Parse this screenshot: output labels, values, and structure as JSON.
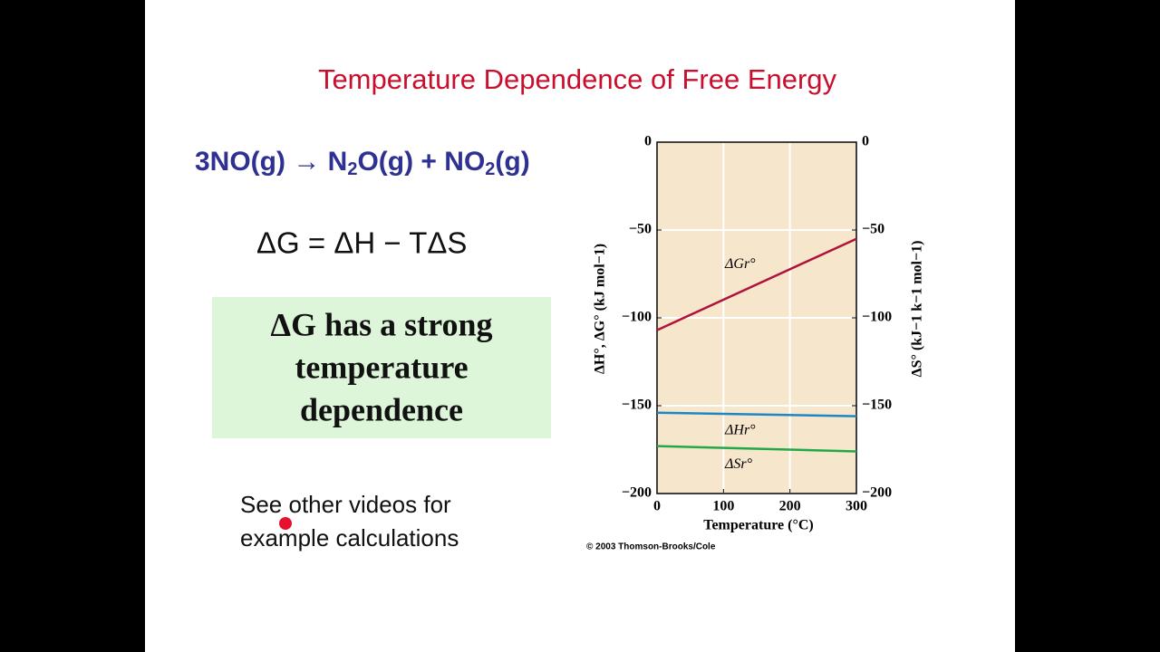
{
  "title": "Temperature Dependence of Free Energy",
  "reaction": [
    "3NO(g) → N",
    "2",
    "O(g) + NO",
    "2",
    "(g)"
  ],
  "equation": "ΔG = ΔH − TΔS",
  "callout": [
    "ΔG has a strong",
    "temperature",
    "dependence"
  ],
  "note": [
    "See other videos for",
    "example calculations"
  ],
  "chart_data": {
    "type": "line",
    "x": [
      0,
      300
    ],
    "series": [
      {
        "name": "ΔGr°",
        "color": "#b0123c",
        "values": [
          -107,
          -55
        ]
      },
      {
        "name": "ΔHr°",
        "color": "#1f86c4",
        "values": [
          -154,
          -156
        ]
      },
      {
        "name": "ΔSr°",
        "color": "#22a846",
        "values": [
          -173,
          -176
        ],
        "axis": "y2"
      }
    ],
    "xlim": [
      0,
      300
    ],
    "xticks": [
      0,
      100,
      200,
      300
    ],
    "ylim": [
      -200,
      0
    ],
    "yticks": [
      {
        "value": -200,
        "label": "−200"
      },
      {
        "value": -150,
        "label": "−150"
      },
      {
        "value": -100,
        "label": "−100"
      },
      {
        "value": -50,
        "label": "−50"
      },
      0
    ],
    "y2lim": [
      -200,
      0
    ],
    "y2ticks": [
      {
        "value": -200,
        "label": "−200"
      },
      {
        "value": -150,
        "label": "−150"
      },
      {
        "value": -100,
        "label": "−100"
      },
      {
        "value": -50,
        "label": "−50"
      },
      0
    ],
    "xlabel": "Temperature (°C)",
    "ylabel": "ΔH°, ΔG° (kJ mol−1)",
    "y2label": "ΔS° (kJ−1 k−1 mol−1)",
    "grid": true,
    "background": "#f5e6cc",
    "credit": "© 2003 Thomson-Brooks/Cole"
  }
}
